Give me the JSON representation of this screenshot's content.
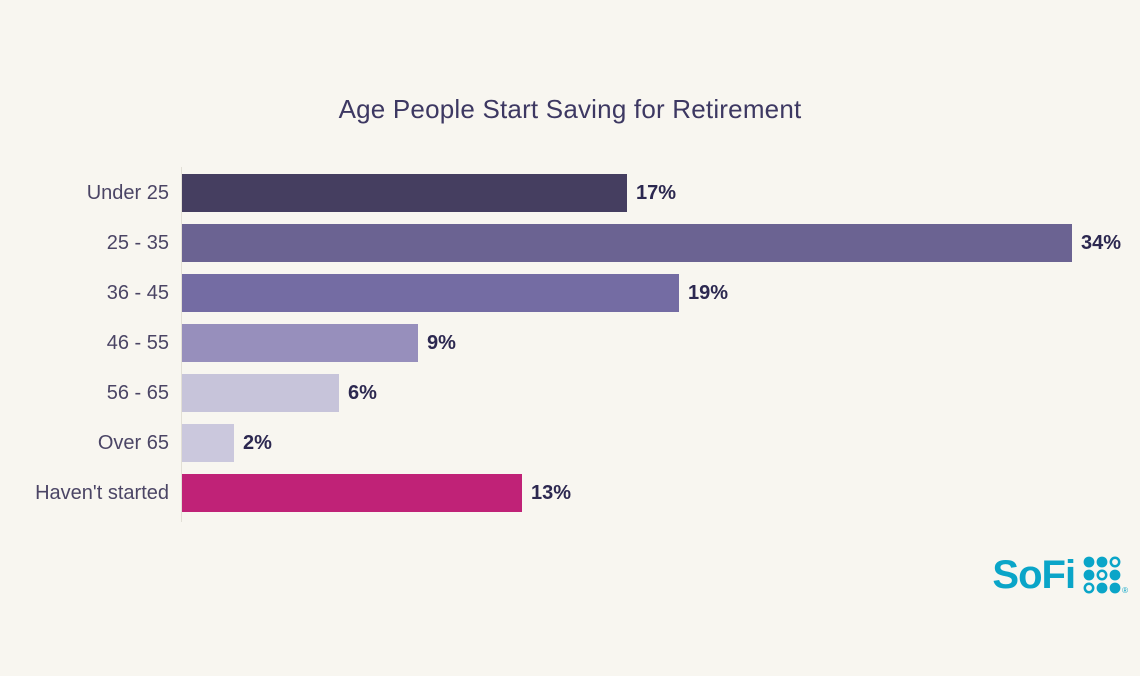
{
  "chart_data": {
    "type": "bar",
    "orientation": "horizontal",
    "title": "Age People Start Saving for Retirement",
    "categories": [
      "Under 25",
      "25 - 35",
      "36 - 45",
      "46 - 55",
      "56 - 65",
      "Over 65",
      "Haven't started"
    ],
    "values": [
      17,
      34,
      19,
      9,
      6,
      2,
      13
    ],
    "value_labels": [
      "17%",
      "34%",
      "19%",
      "9%",
      "6%",
      "2%",
      "13%"
    ],
    "bar_colors": [
      "#453e60",
      "#6b6392",
      "#746ca3",
      "#978fbc",
      "#c7c4da",
      "#cbc8dd",
      "#c02277"
    ],
    "xlabel": "",
    "ylabel": "",
    "xlim": [
      0,
      34
    ],
    "grid": false,
    "legend": false,
    "value_label_position": "end-of-bar"
  },
  "branding": {
    "logo_text": "SoFi",
    "registered_mark": "®",
    "logo_color": "#0aa5c8"
  },
  "colors": {
    "background": "#f8f6f0",
    "title": "#3d3862",
    "category_label": "#4b4565",
    "value_label": "#2c2850",
    "axis_line": "#e2dfd6"
  }
}
